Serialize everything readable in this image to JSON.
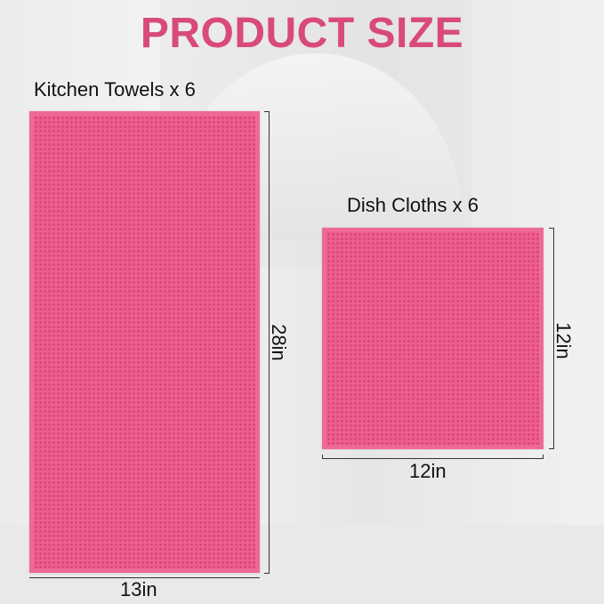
{
  "title": "PRODUCT SIZE",
  "kitchen_towels": {
    "label": "Kitchen Towels x 6",
    "height": "28in",
    "width": "13in"
  },
  "dish_cloths": {
    "label": "Dish Cloths x 6",
    "height": "12in",
    "width": "12in"
  },
  "colors": {
    "accent": "#d94a7b",
    "towel": "#ec5f8e"
  }
}
